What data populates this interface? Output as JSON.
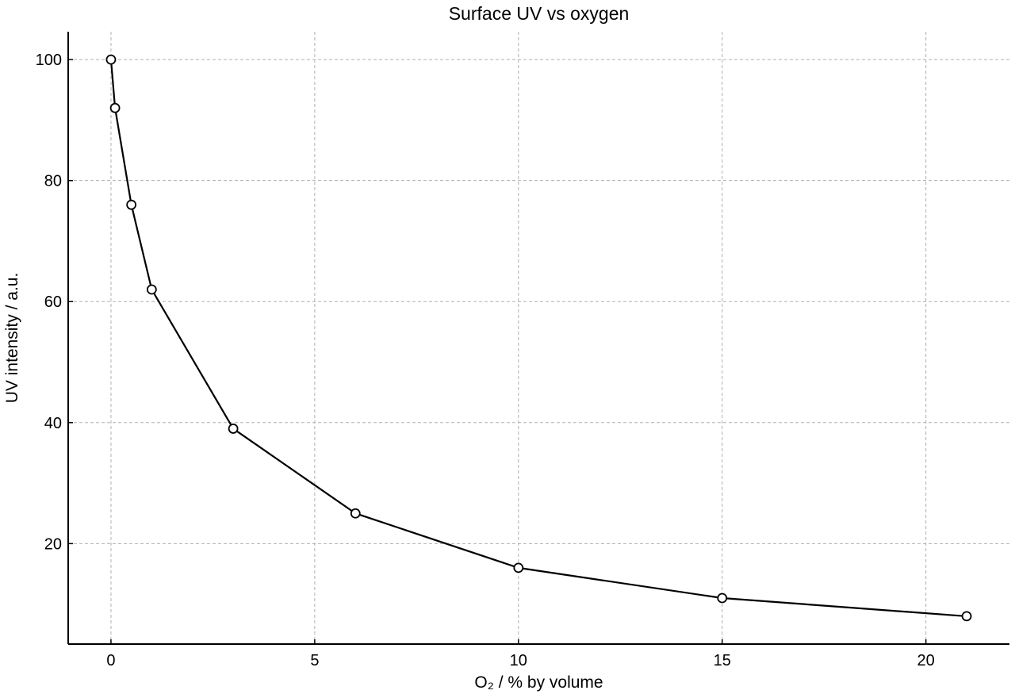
{
  "chart_data": {
    "type": "line",
    "title": "Surface UV vs oxygen",
    "xlabel": "O₂ / % by volume",
    "ylabel": "UV intensity / a.u.",
    "xlim": [
      -1.05,
      22.05
    ],
    "ylim": [
      3.4,
      104.6
    ],
    "xticks": [
      0,
      5,
      10,
      15,
      20
    ],
    "yticks": [
      20,
      40,
      60,
      80,
      100
    ],
    "grid": true,
    "series": [
      {
        "x": [
          0,
          0.1,
          0.5,
          1,
          3,
          6,
          10,
          15,
          21
        ],
        "y": [
          100,
          92,
          76,
          62,
          39,
          25,
          16,
          11,
          8
        ],
        "color": "#000000",
        "marker": "open-circle"
      }
    ]
  }
}
